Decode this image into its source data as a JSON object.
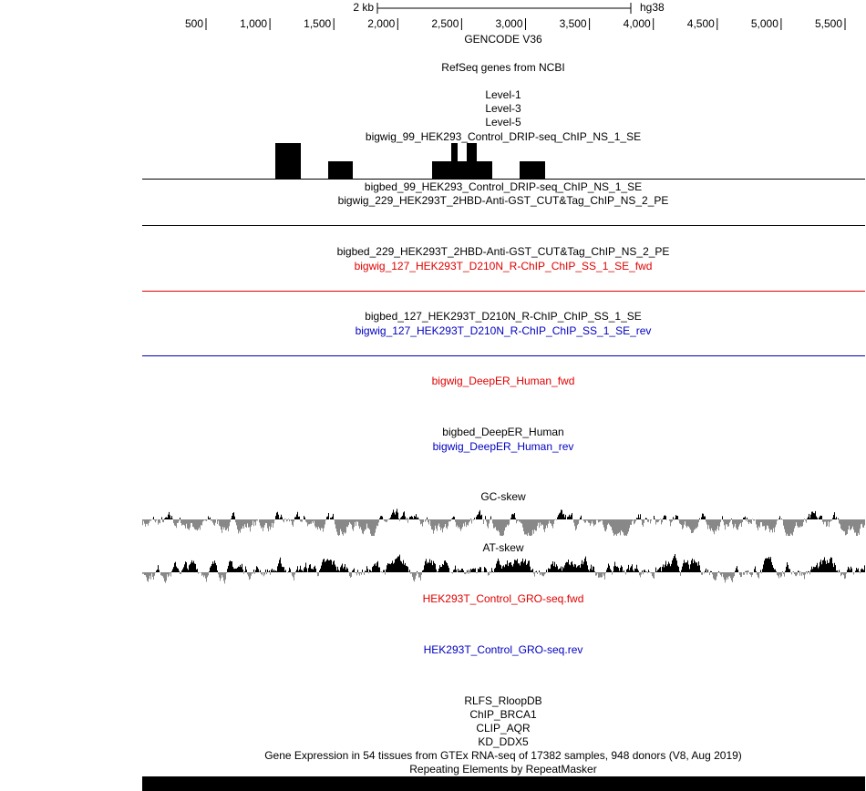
{
  "ruler": {
    "scale_label": "2 kb",
    "assembly": "hg38",
    "ticks": [
      "500",
      "1,000",
      "1,500",
      "2,000",
      "2,500",
      "3,000",
      "3,500",
      "4,000",
      "4,500",
      "5,000",
      "5,500"
    ]
  },
  "tracks": {
    "gencode": "GENCODE V36",
    "refseq": "RefSeq genes from NCBI",
    "level1": "Level-1",
    "level3": "Level-3",
    "level5": "Level-5",
    "bigwig_99": "bigwig_99_HEK293_Control_DRIP-seq_ChIP_NS_1_SE",
    "bigbed_99": "bigbed_99_HEK293_Control_DRIP-seq_ChIP_NS_1_SE",
    "bigwig_229": "bigwig_229_HEK293T_2HBD-Anti-GST_CUT&Tag_ChIP_NS_2_PE",
    "bigbed_229": "bigbed_229_HEK293T_2HBD-Anti-GST_CUT&Tag_ChIP_NS_2_PE",
    "bigwig_127_fwd": "bigwig_127_HEK293T_D210N_R-ChIP_ChIP_SS_1_SE_fwd",
    "bigbed_127": "bigbed_127_HEK293T_D210N_R-ChIP_ChIP_SS_1_SE",
    "bigwig_127_rev": "bigwig_127_HEK293T_D210N_R-ChIP_ChIP_SS_1_SE_rev",
    "deeper_fwd": "bigwig_DeepER_Human_fwd",
    "deeper_bed": "bigbed_DeepER_Human",
    "deeper_rev": "bigwig_DeepER_Human_rev",
    "gc_skew": "GC-skew",
    "at_skew": "AT-skew",
    "gro_fwd": "HEK293T_Control_GRO-seq.fwd",
    "gro_rev": "HEK293T_Control_GRO-seq.rev",
    "rlfs": "RLFS_RloopDB",
    "brca1": "ChIP_BRCA1",
    "aqr": "CLIP_AQR",
    "ddx5": "KD_DDX5",
    "gtex": "Gene Expression in 54 tissues from GTEx RNA-seq of 17382 samples, 948 donors (V8, Aug 2019)",
    "repeatmasker": "Repeating Elements by RepeatMasker"
  }
}
